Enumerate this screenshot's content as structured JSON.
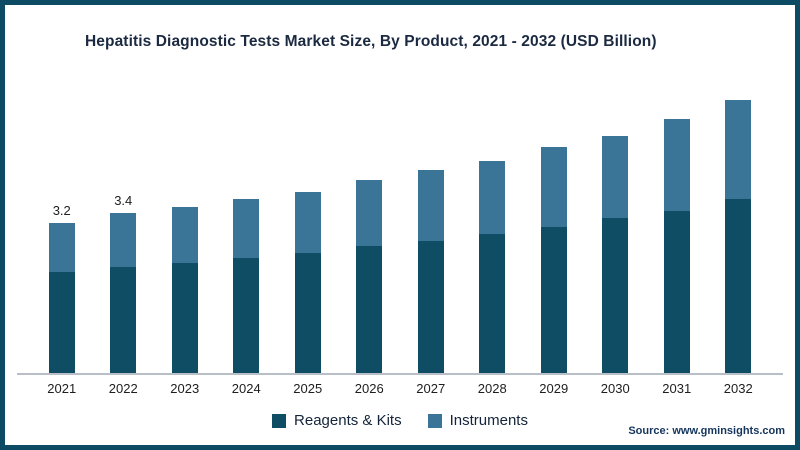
{
  "title": "Hepatitis Diagnostic Tests Market Size, By Product, 2021 - 2032 (USD Billion)",
  "source_text": "Source: www.gminsights.com",
  "colors": {
    "frame_border": "#0d4a63",
    "reagents_kits": "#0e4d64",
    "instruments": "#3a7496"
  },
  "chart_data": {
    "type": "bar",
    "stacked": true,
    "title": "Hepatitis Diagnostic Tests Market Size, By Product, 2021 - 2032 (USD Billion)",
    "categories": [
      "2021",
      "2022",
      "2023",
      "2024",
      "2025",
      "2026",
      "2027",
      "2028",
      "2029",
      "2030",
      "2031",
      "2032"
    ],
    "series": [
      {
        "name": "Reagents & Kits",
        "color": "#0e4d64",
        "values": [
          2.15,
          2.25,
          2.35,
          2.45,
          2.55,
          2.7,
          2.8,
          2.95,
          3.1,
          3.3,
          3.45,
          3.7
        ]
      },
      {
        "name": "Instruments",
        "color": "#3a7496",
        "values": [
          1.05,
          1.15,
          1.2,
          1.25,
          1.3,
          1.4,
          1.5,
          1.55,
          1.7,
          1.75,
          1.95,
          2.1
        ]
      }
    ],
    "totals": [
      3.2,
      3.4,
      3.55,
      3.7,
      3.85,
      4.1,
      4.3,
      4.5,
      4.8,
      5.05,
      5.4,
      5.8
    ],
    "data_labels": [
      "3.2",
      "3.4",
      "",
      "",
      "",
      "",
      "",
      "",
      "",
      "",
      "",
      ""
    ],
    "xlabel": "",
    "ylabel": "",
    "ylim": [
      0,
      6
    ],
    "grid": false,
    "legend_position": "bottom"
  }
}
